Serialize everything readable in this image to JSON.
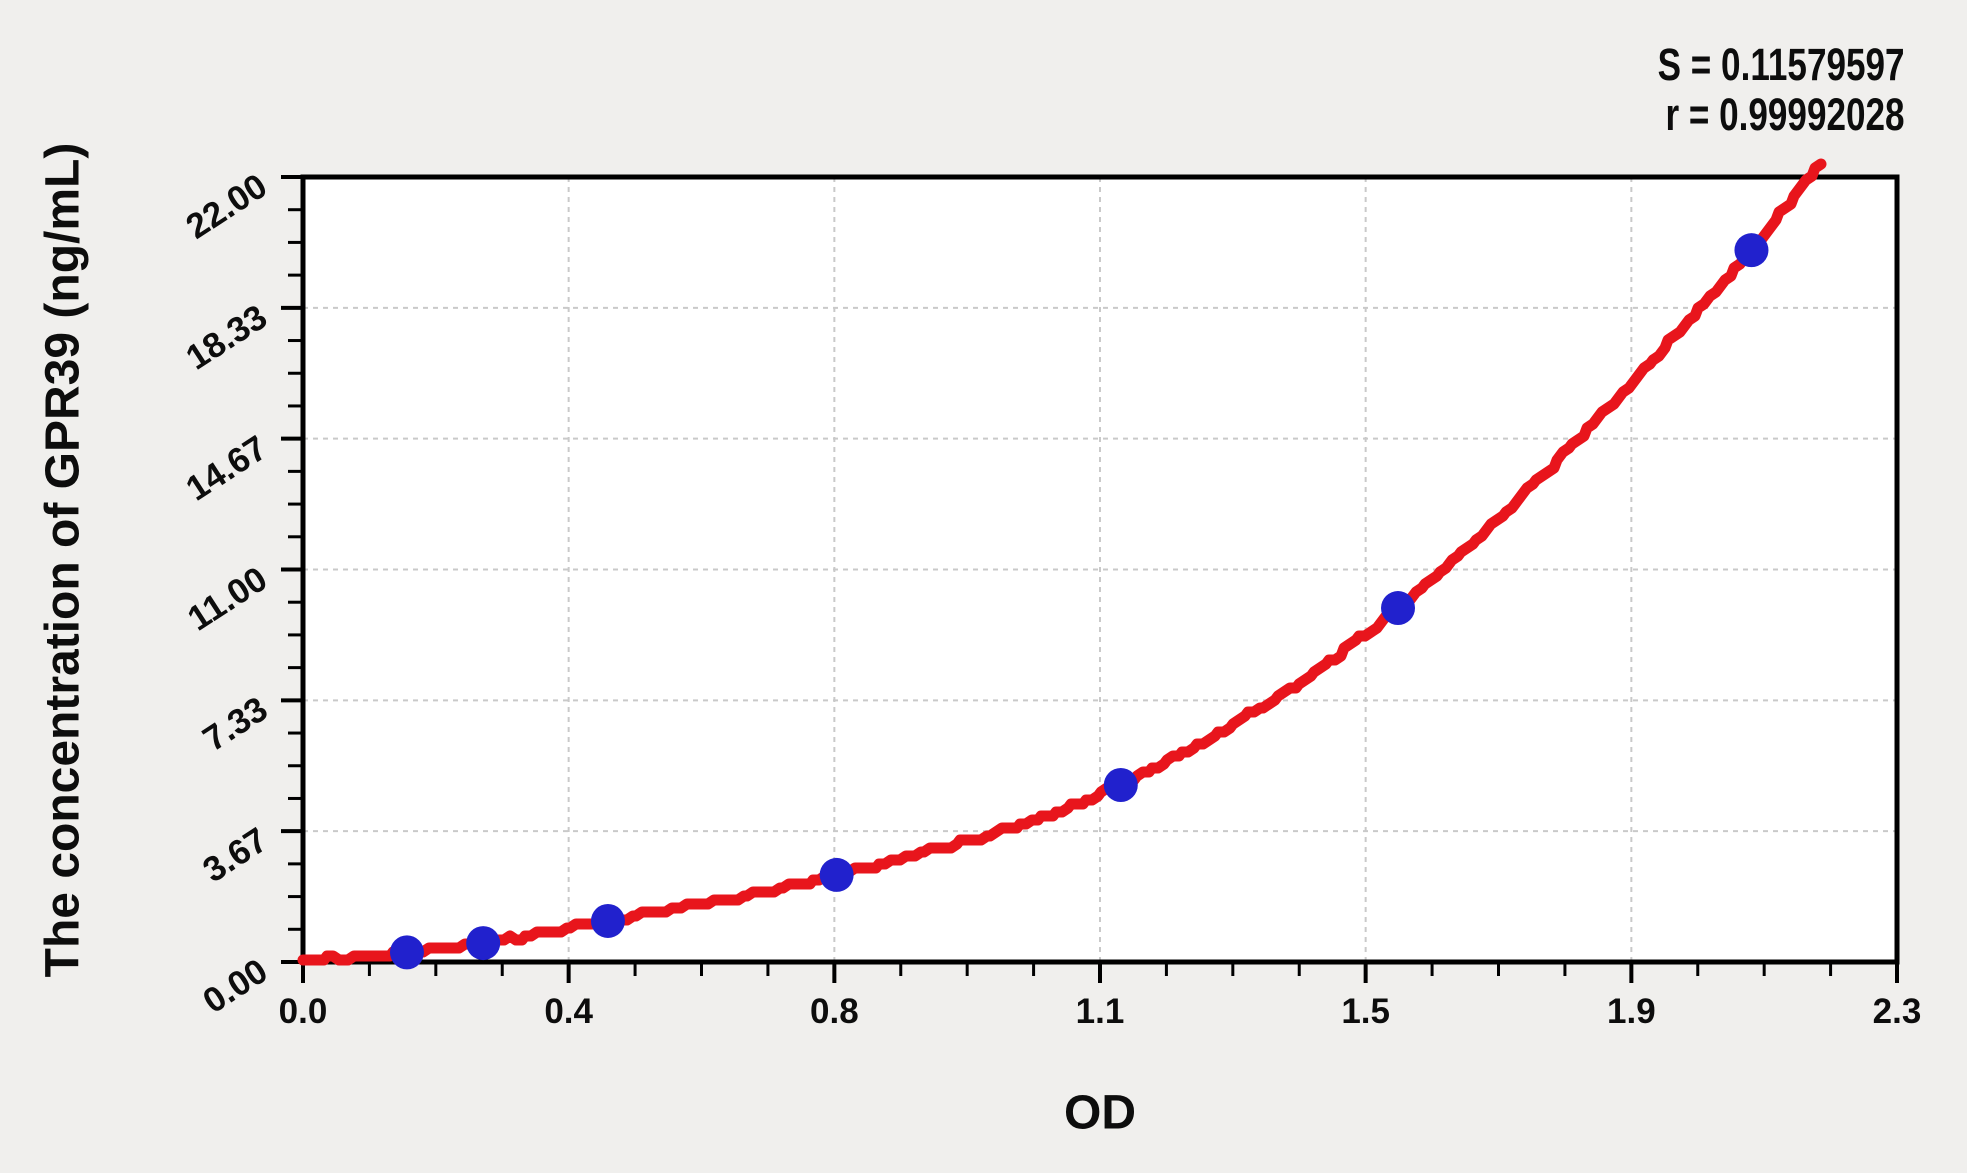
{
  "chart_data": {
    "type": "scatter",
    "title": "",
    "xlabel": "OD",
    "ylabel": "The concentration of GPR39 (ng/mL)",
    "xlim": [
      0,
      2.3
    ],
    "ylim": [
      0,
      22
    ],
    "grid": true,
    "legend_position": "none",
    "x_ticks": [
      {
        "value": 0.0,
        "label": "0.0"
      },
      {
        "value": 0.3833,
        "label": "0.4"
      },
      {
        "value": 0.7667,
        "label": "0.8"
      },
      {
        "value": 1.15,
        "label": "1.1"
      },
      {
        "value": 1.5333,
        "label": "1.5"
      },
      {
        "value": 1.9167,
        "label": "1.9"
      },
      {
        "value": 2.3,
        "label": "2.3"
      }
    ],
    "y_ticks": [
      {
        "value": 0.0,
        "label": "0.00"
      },
      {
        "value": 3.6667,
        "label": "3.67"
      },
      {
        "value": 7.3333,
        "label": "7.33"
      },
      {
        "value": 11.0,
        "label": "11.00"
      },
      {
        "value": 14.6667,
        "label": "14.67"
      },
      {
        "value": 18.3333,
        "label": "18.33"
      },
      {
        "value": 22.0,
        "label": "22.00"
      }
    ],
    "minor_ticks_per_interval": 3,
    "stats": {
      "S": "S = 0.11579597",
      "r": "r = 0.99992028"
    },
    "series": [
      {
        "name": "standard-points",
        "type": "scatter",
        "color": "#2121cd",
        "points": [
          [
            0.15,
            0.27
          ],
          [
            0.26,
            0.53
          ],
          [
            0.44,
            1.15
          ],
          [
            0.77,
            2.44
          ],
          [
            1.18,
            4.96
          ],
          [
            1.58,
            9.92
          ],
          [
            2.09,
            19.95
          ]
        ]
      },
      {
        "name": "fitted-curve",
        "type": "line",
        "color": "#e8151c",
        "points": [
          [
            0.0,
            0.02
          ],
          [
            0.15,
            0.27
          ],
          [
            0.26,
            0.53
          ],
          [
            0.44,
            1.15
          ],
          [
            0.77,
            2.44
          ],
          [
            1.18,
            4.96
          ],
          [
            1.58,
            9.92
          ],
          [
            2.09,
            19.95
          ],
          [
            2.19,
            22.4
          ]
        ]
      }
    ],
    "colors": {
      "background": "#f0efed",
      "plot_background": "#ffffff",
      "grid": "#c9c9c9",
      "axis": "#000000",
      "text": "#0d0d0d",
      "curve": "#e8151c",
      "points": "#2121cd"
    }
  }
}
